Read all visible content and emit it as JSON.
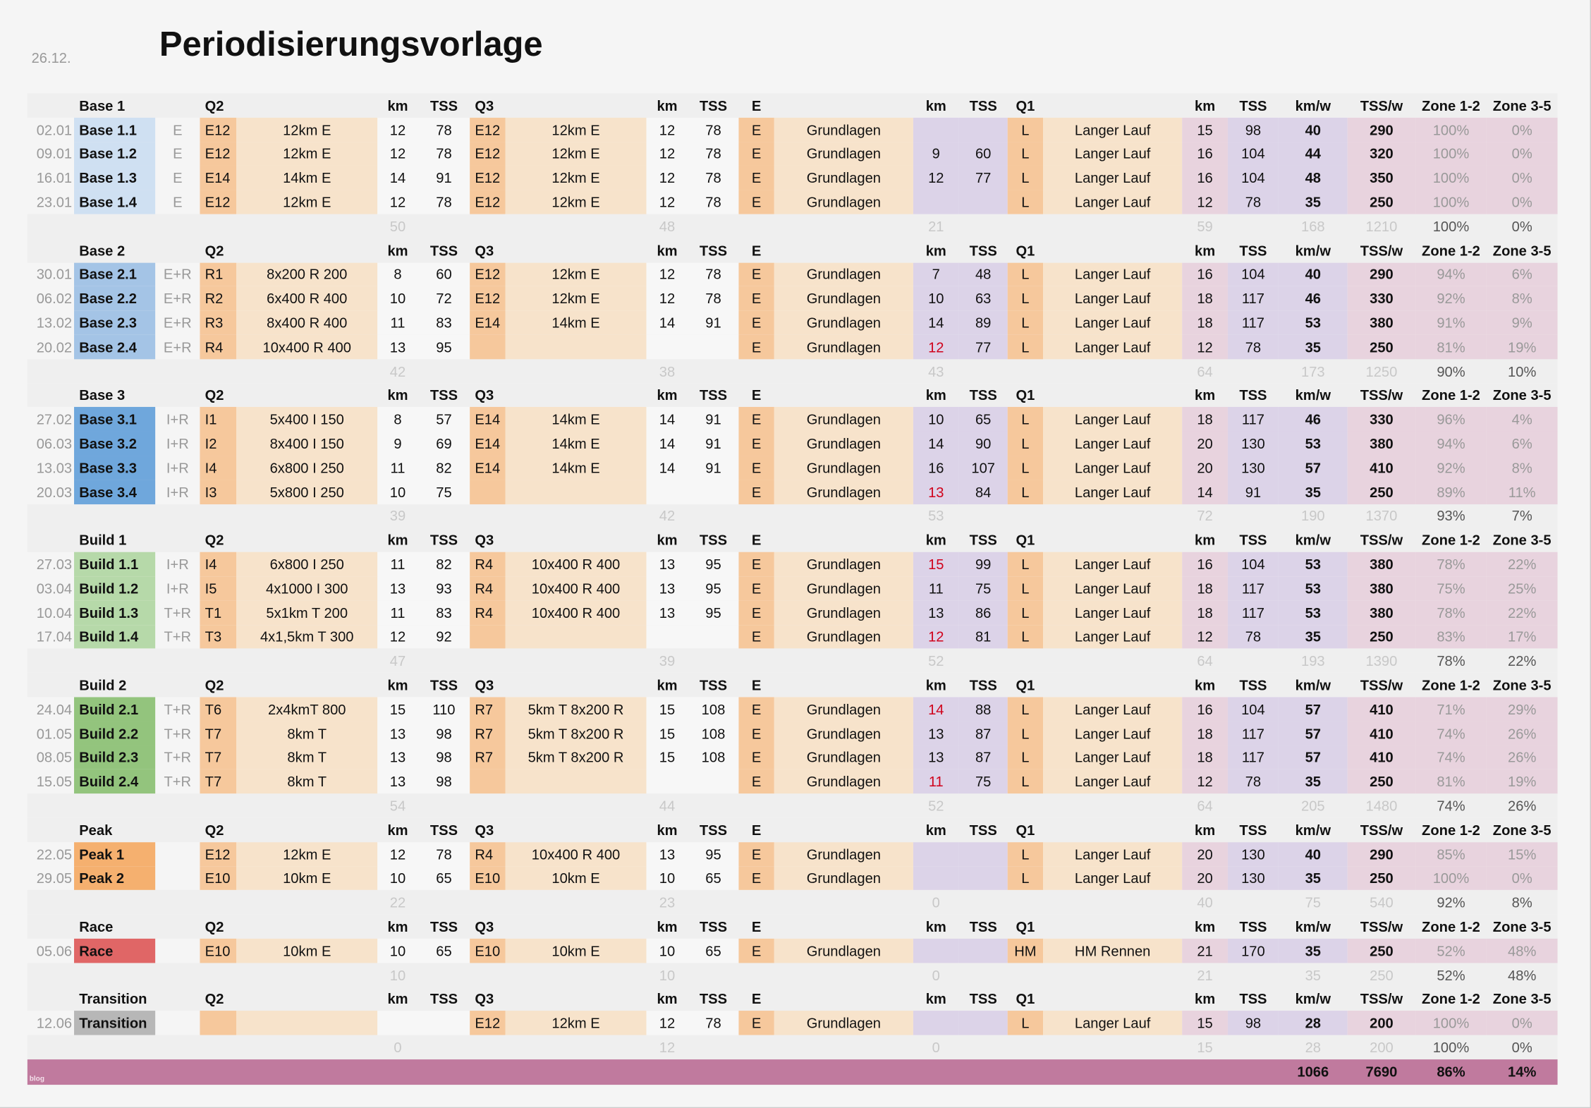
{
  "header": {
    "date": "26.12.",
    "title": "Periodisierungsvorlage"
  },
  "colors": {
    "orange": "#f6c89c",
    "light_orange": "#f7e3cb",
    "lavender": "#dcd3e8",
    "pink": "#e8d3de",
    "total": "#c07a9e",
    "red_value": "#d0021b"
  },
  "columns": {
    "q2": "Q2",
    "q3": "Q3",
    "e": "E",
    "q1": "Q1",
    "km": "km",
    "tss": "TSS",
    "kmw": "km/w",
    "tssw": "TSS/w",
    "z12": "Zone 1-2",
    "z35": "Zone 3-5"
  },
  "sections": [
    {
      "name": "Base 1",
      "color": "#cfe0f2",
      "rows": [
        [
          "02.01",
          "Base 1.1",
          "E",
          "E12",
          "12km E",
          "12",
          "78",
          "E12",
          "12km E",
          "12",
          "78",
          "E",
          "Grundlagen",
          "",
          "",
          "L",
          "Langer Lauf",
          "15",
          "98",
          "40",
          "290",
          "100%",
          "0%"
        ],
        [
          "09.01",
          "Base 1.2",
          "E",
          "E12",
          "12km E",
          "12",
          "78",
          "E12",
          "12km E",
          "12",
          "78",
          "E",
          "Grundlagen",
          "9",
          "60",
          "L",
          "Langer Lauf",
          "16",
          "104",
          "44",
          "320",
          "100%",
          "0%"
        ],
        [
          "16.01",
          "Base 1.3",
          "E",
          "E14",
          "14km E",
          "14",
          "91",
          "E12",
          "12km E",
          "12",
          "78",
          "E",
          "Grundlagen",
          "12",
          "77",
          "L",
          "Langer Lauf",
          "16",
          "104",
          "48",
          "350",
          "100%",
          "0%"
        ],
        [
          "23.01",
          "Base 1.4",
          "E",
          "E12",
          "12km E",
          "12",
          "78",
          "E12",
          "12km E",
          "12",
          "78",
          "E",
          "Grundlagen",
          "",
          "",
          "L",
          "Langer Lauf",
          "12",
          "78",
          "35",
          "250",
          "100%",
          "0%"
        ]
      ],
      "red": [],
      "summary": {
        "q2km": "50",
        "q3km": "48",
        "ekm": "21",
        "km": "59",
        "kmw": "168",
        "tssw": "1210",
        "z12": "100%",
        "z35": "0%"
      }
    },
    {
      "name": "Base 2",
      "color": "#a4c4e6",
      "rows": [
        [
          "30.01",
          "Base 2.1",
          "E+R",
          "R1",
          "8x200 R 200",
          "8",
          "60",
          "E12",
          "12km E",
          "12",
          "78",
          "E",
          "Grundlagen",
          "7",
          "48",
          "L",
          "Langer Lauf",
          "16",
          "104",
          "40",
          "290",
          "94%",
          "6%"
        ],
        [
          "06.02",
          "Base 2.2",
          "E+R",
          "R2",
          "6x400 R 400",
          "10",
          "72",
          "E12",
          "12km E",
          "12",
          "78",
          "E",
          "Grundlagen",
          "10",
          "63",
          "L",
          "Langer Lauf",
          "18",
          "117",
          "46",
          "330",
          "92%",
          "8%"
        ],
        [
          "13.02",
          "Base 2.3",
          "E+R",
          "R3",
          "8x400 R 400",
          "11",
          "83",
          "E14",
          "14km E",
          "14",
          "91",
          "E",
          "Grundlagen",
          "14",
          "89",
          "L",
          "Langer Lauf",
          "18",
          "117",
          "53",
          "380",
          "91%",
          "9%"
        ],
        [
          "20.02",
          "Base 2.4",
          "E+R",
          "R4",
          "10x400 R 400",
          "13",
          "95",
          "",
          "",
          "",
          "",
          "E",
          "Grundlagen",
          "12",
          "77",
          "L",
          "Langer Lauf",
          "12",
          "78",
          "35",
          "250",
          "81%",
          "19%"
        ]
      ],
      "red": [
        3
      ],
      "summary": {
        "q2km": "42",
        "q3km": "38",
        "ekm": "43",
        "km": "64",
        "kmw": "173",
        "tssw": "1250",
        "z12": "90%",
        "z35": "10%"
      }
    },
    {
      "name": "Base 3",
      "color": "#6fa7dc",
      "rows": [
        [
          "27.02",
          "Base 3.1",
          "I+R",
          "I1",
          "5x400 I 150",
          "8",
          "57",
          "E14",
          "14km E",
          "14",
          "91",
          "E",
          "Grundlagen",
          "10",
          "65",
          "L",
          "Langer Lauf",
          "18",
          "117",
          "46",
          "330",
          "96%",
          "4%"
        ],
        [
          "06.03",
          "Base 3.2",
          "I+R",
          "I2",
          "8x400 I 150",
          "9",
          "69",
          "E14",
          "14km E",
          "14",
          "91",
          "E",
          "Grundlagen",
          "14",
          "90",
          "L",
          "Langer Lauf",
          "20",
          "130",
          "53",
          "380",
          "94%",
          "6%"
        ],
        [
          "13.03",
          "Base 3.3",
          "I+R",
          "I4",
          "6x800 I 250",
          "11",
          "82",
          "E14",
          "14km E",
          "14",
          "91",
          "E",
          "Grundlagen",
          "16",
          "107",
          "L",
          "Langer Lauf",
          "20",
          "130",
          "57",
          "410",
          "92%",
          "8%"
        ],
        [
          "20.03",
          "Base 3.4",
          "I+R",
          "I3",
          "5x800 I 250",
          "10",
          "75",
          "",
          "",
          "",
          "",
          "E",
          "Grundlagen",
          "13",
          "84",
          "L",
          "Langer Lauf",
          "14",
          "91",
          "35",
          "250",
          "89%",
          "11%"
        ]
      ],
      "red": [
        3
      ],
      "summary": {
        "q2km": "39",
        "q3km": "42",
        "ekm": "53",
        "km": "72",
        "kmw": "190",
        "tssw": "1370",
        "z12": "93%",
        "z35": "7%"
      }
    },
    {
      "name": "Build 1",
      "color": "#b6d9a9",
      "rows": [
        [
          "27.03",
          "Build 1.1",
          "I+R",
          "I4",
          "6x800 I 250",
          "11",
          "82",
          "R4",
          "10x400 R 400",
          "13",
          "95",
          "E",
          "Grundlagen",
          "15",
          "99",
          "L",
          "Langer Lauf",
          "16",
          "104",
          "53",
          "380",
          "78%",
          "22%"
        ],
        [
          "03.04",
          "Build 1.2",
          "I+R",
          "I5",
          "4x1000 I 300",
          "13",
          "93",
          "R4",
          "10x400 R 400",
          "13",
          "95",
          "E",
          "Grundlagen",
          "11",
          "75",
          "L",
          "Langer Lauf",
          "18",
          "117",
          "53",
          "380",
          "75%",
          "25%"
        ],
        [
          "10.04",
          "Build 1.3",
          "T+R",
          "T1",
          "5x1km T 200",
          "11",
          "83",
          "R4",
          "10x400 R 400",
          "13",
          "95",
          "E",
          "Grundlagen",
          "13",
          "86",
          "L",
          "Langer Lauf",
          "18",
          "117",
          "53",
          "380",
          "78%",
          "22%"
        ],
        [
          "17.04",
          "Build 1.4",
          "T+R",
          "T3",
          "4x1,5km T 300",
          "12",
          "92",
          "",
          "",
          "",
          "",
          "E",
          "Grundlagen",
          "12",
          "81",
          "L",
          "Langer Lauf",
          "12",
          "78",
          "35",
          "250",
          "83%",
          "17%"
        ]
      ],
      "red": [
        0,
        3
      ],
      "summary": {
        "q2km": "47",
        "q3km": "39",
        "ekm": "52",
        "km": "64",
        "kmw": "193",
        "tssw": "1390",
        "z12": "78%",
        "z35": "22%"
      }
    },
    {
      "name": "Build 2",
      "color": "#93c47d",
      "rows": [
        [
          "24.04",
          "Build 2.1",
          "T+R",
          "T6",
          "2x4kmT 800",
          "15",
          "110",
          "R7",
          "5km T 8x200 R",
          "15",
          "108",
          "E",
          "Grundlagen",
          "14",
          "88",
          "L",
          "Langer Lauf",
          "16",
          "104",
          "57",
          "410",
          "71%",
          "29%"
        ],
        [
          "01.05",
          "Build 2.2",
          "T+R",
          "T7",
          "8km T",
          "13",
          "98",
          "R7",
          "5km T 8x200 R",
          "15",
          "108",
          "E",
          "Grundlagen",
          "13",
          "87",
          "L",
          "Langer Lauf",
          "18",
          "117",
          "57",
          "410",
          "74%",
          "26%"
        ],
        [
          "08.05",
          "Build 2.3",
          "T+R",
          "T7",
          "8km T",
          "13",
          "98",
          "R7",
          "5km T 8x200 R",
          "15",
          "108",
          "E",
          "Grundlagen",
          "13",
          "87",
          "L",
          "Langer Lauf",
          "18",
          "117",
          "57",
          "410",
          "74%",
          "26%"
        ],
        [
          "15.05",
          "Build 2.4",
          "T+R",
          "T7",
          "8km T",
          "13",
          "98",
          "",
          "",
          "",
          "",
          "E",
          "Grundlagen",
          "11",
          "75",
          "L",
          "Langer Lauf",
          "12",
          "78",
          "35",
          "250",
          "81%",
          "19%"
        ]
      ],
      "red": [
        0,
        3
      ],
      "summary": {
        "q2km": "54",
        "q3km": "44",
        "ekm": "52",
        "km": "64",
        "kmw": "205",
        "tssw": "1480",
        "z12": "74%",
        "z35": "26%"
      }
    },
    {
      "name": "Peak",
      "color": "#f5b06f",
      "rows": [
        [
          "22.05",
          "Peak 1",
          "",
          "E12",
          "12km E",
          "12",
          "78",
          "R4",
          "10x400 R 400",
          "13",
          "95",
          "E",
          "Grundlagen",
          "",
          "",
          "L",
          "Langer Lauf",
          "20",
          "130",
          "40",
          "290",
          "85%",
          "15%"
        ],
        [
          "29.05",
          "Peak 2",
          "",
          "E10",
          "10km E",
          "10",
          "65",
          "E10",
          "10km E",
          "10",
          "65",
          "E",
          "Grundlagen",
          "",
          "",
          "L",
          "Langer Lauf",
          "20",
          "130",
          "35",
          "250",
          "100%",
          "0%"
        ]
      ],
      "red": [],
      "summary": {
        "q2km": "22",
        "q3km": "23",
        "ekm": "0",
        "km": "40",
        "kmw": "75",
        "tssw": "540",
        "z12": "92%",
        "z35": "8%"
      }
    },
    {
      "name": "Race",
      "color": "#e06666",
      "rows": [
        [
          "05.06",
          "Race",
          "",
          "E10",
          "10km E",
          "10",
          "65",
          "E10",
          "10km E",
          "10",
          "65",
          "E",
          "Grundlagen",
          "",
          "",
          "HM",
          "HM Rennen",
          "21",
          "170",
          "35",
          "250",
          "52%",
          "48%"
        ]
      ],
      "red": [],
      "summary": {
        "q2km": "10",
        "q3km": "10",
        "ekm": "0",
        "km": "21",
        "kmw": "35",
        "tssw": "250",
        "z12": "52%",
        "z35": "48%"
      }
    },
    {
      "name": "Transition",
      "color": "#b7b7b7",
      "rows": [
        [
          "12.06",
          "Transition",
          "",
          "",
          "",
          "",
          "",
          "E12",
          "12km E",
          "12",
          "78",
          "E",
          "Grundlagen",
          "",
          "",
          "L",
          "Langer Lauf",
          "15",
          "98",
          "28",
          "200",
          "100%",
          "0%"
        ]
      ],
      "red": [],
      "summary": {
        "q2km": "0",
        "q3km": "12",
        "ekm": "0",
        "km": "15",
        "kmw": "28",
        "tssw": "200",
        "z12": "100%",
        "z35": "0%"
      }
    }
  ],
  "total": {
    "kmw": "1066",
    "tssw": "7690",
    "z12": "86%",
    "z35": "14%",
    "watermark": "blog"
  }
}
